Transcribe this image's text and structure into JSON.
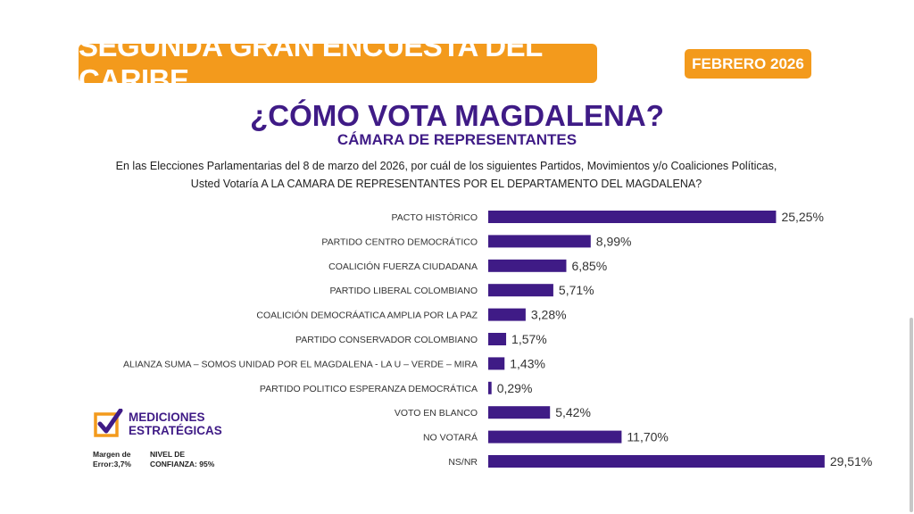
{
  "header": {
    "banner": "SEGUNDA GRAN ENCUESTA DEL CARIBE",
    "date": "FEBRERO 2026",
    "title": "¿CÓMO VOTA MAGDALENA?",
    "subtitle": "CÁMARA DE REPRESENTANTES",
    "question_line1": "En las Elecciones Parlamentarias del 8 de marzo del 2026, por cuál de los siguientes Partidos, Movimientos y/o Coaliciones Políticas,",
    "question_line2": "Usted Votaría A LA CAMARA DE REPRESENTANTES POR EL DEPARTAMENTO DEL MAGDALENA?"
  },
  "chart_data": {
    "type": "bar",
    "orientation": "horizontal",
    "categories": [
      "PACTO HISTÓRICO",
      "PARTIDO CENTRO DEMOCRÁTICO",
      "COALICIÓN FUERZA CIUDADANA",
      "PARTIDO LIBERAL COLOMBIANO",
      "COALICIÓN DEMOCRÁATICA AMPLIA POR LA PAZ",
      "PARTIDO CONSERVADOR COLOMBIANO",
      "ALIANZA SUMA – SOMOS UNIDAD POR EL MAGDALENA - LA U – VERDE – MIRA",
      "PARTIDO POLITICO ESPERANZA DEMOCRÁTICA",
      "VOTO EN BLANCO",
      "NO VOTARÁ",
      "NS/NR"
    ],
    "values": [
      25.25,
      8.99,
      6.85,
      5.71,
      3.28,
      1.57,
      1.43,
      0.29,
      5.42,
      11.7,
      29.51
    ],
    "value_labels": [
      "25,25%",
      "8,99%",
      "6,85%",
      "5,71%",
      "3,28%",
      "1,57%",
      "1,43%",
      "0,29%",
      "5,42%",
      "11,70%",
      "29,51%"
    ],
    "bar_color": "#3f1b86",
    "grid": false,
    "legend": "none"
  },
  "footer": {
    "logo_line1": "MEDICIONES",
    "logo_line2": "ESTRATÉGICAS",
    "error_line1": "Margen de",
    "error_line2": "Error:3,7%",
    "confidence_line1": "NIVEL DE",
    "confidence_line2": "CONFIANZA: 95%"
  },
  "colors": {
    "accent": "#f39a1c",
    "brand": "#3f1b86"
  }
}
